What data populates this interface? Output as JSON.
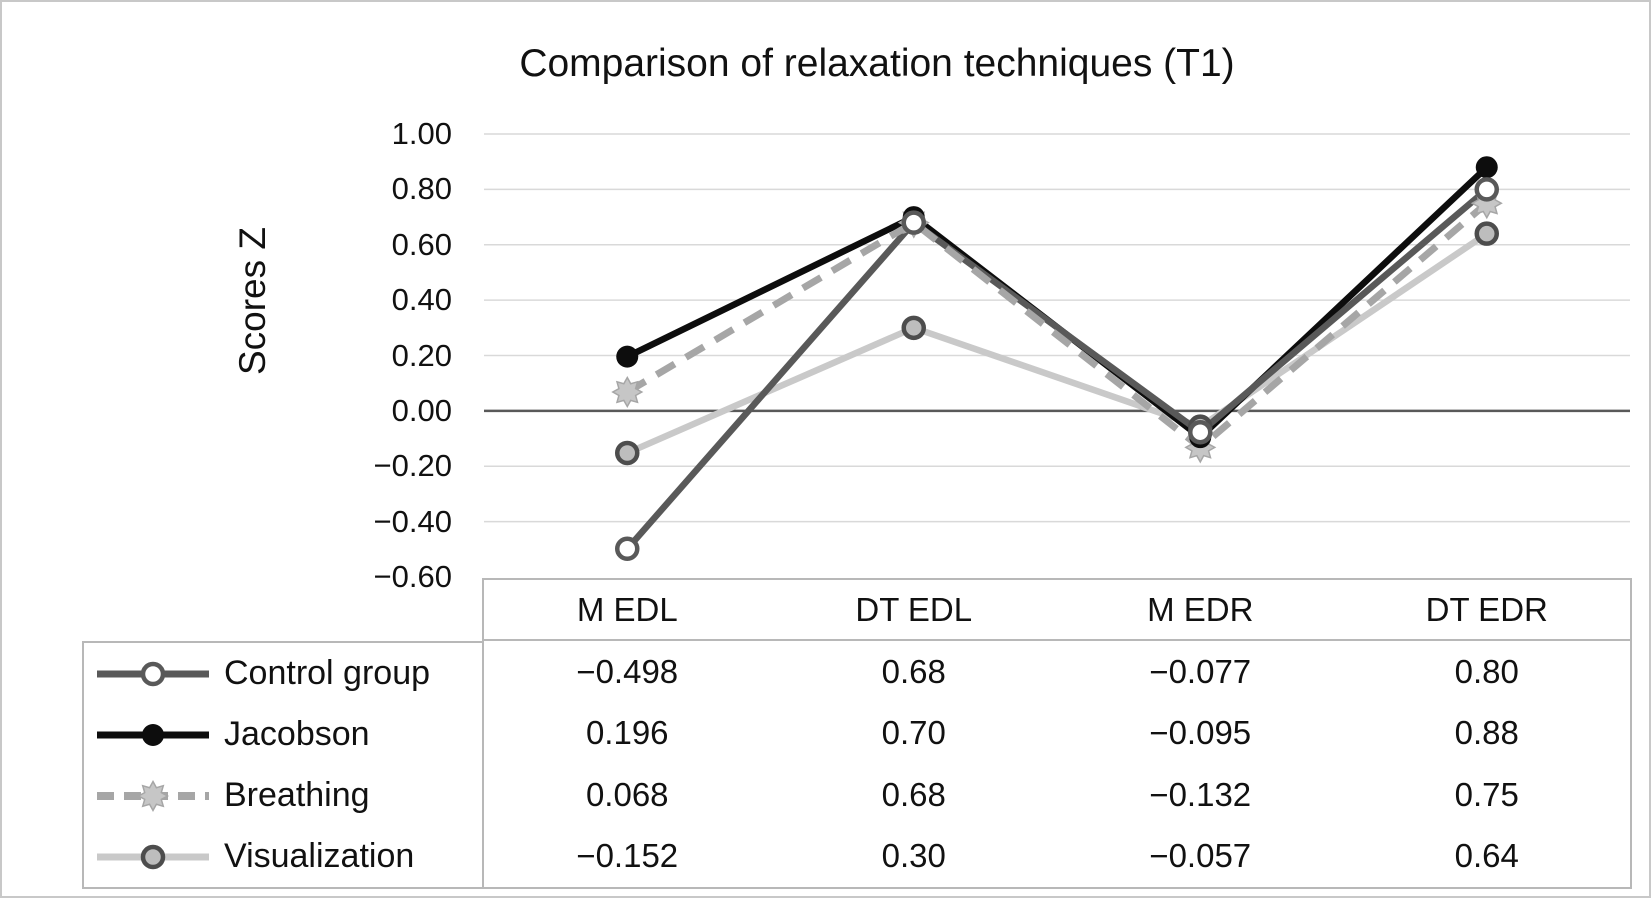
{
  "title": "Comparison of relaxation techniques (T1)",
  "y_axis": {
    "label": "Scores Z",
    "ticks": [
      "1.00",
      "0.80",
      "0.60",
      "0.40",
      "0.20",
      "0.00",
      "−0.20",
      "−0.40",
      "−0.60"
    ],
    "max": 1.0,
    "min": -0.6,
    "step": 0.2
  },
  "chart_data": {
    "type": "line",
    "title": "Comparison of relaxation techniques (T1)",
    "xlabel": "",
    "ylabel": "Scores Z",
    "ylim": [
      -0.6,
      1.0
    ],
    "ytick_step": 0.2,
    "grid": true,
    "zero_line": true,
    "legend_position": "table-left",
    "categories": [
      "M EDL",
      "DT EDL",
      "M EDR",
      "DT EDR"
    ],
    "series": [
      {
        "name": "Control group",
        "values": [
          -0.498,
          0.68,
          -0.077,
          0.8
        ],
        "display": [
          "−0.498",
          "0.68",
          "−0.077",
          "0.80"
        ],
        "line_style": "solid",
        "color": "#595959",
        "marker": "open-circle",
        "marker_fill": "#ffffff"
      },
      {
        "name": "Jacobson",
        "values": [
          0.196,
          0.7,
          -0.095,
          0.88
        ],
        "display": [
          "0.196",
          "0.70",
          "−0.095",
          "0.88"
        ],
        "line_style": "solid",
        "color": "#0d0d0d",
        "marker": "filled-circle",
        "marker_fill": "#0d0d0d"
      },
      {
        "name": "Breathing",
        "values": [
          0.068,
          0.68,
          -0.132,
          0.75
        ],
        "display": [
          "0.068",
          "0.68",
          "−0.132",
          "0.75"
        ],
        "line_style": "dashed",
        "color": "#a6a6a6",
        "marker": "gear",
        "marker_fill": "#c6c6c6"
      },
      {
        "name": "Visualization",
        "values": [
          -0.152,
          0.3,
          -0.057,
          0.64
        ],
        "display": [
          "−0.152",
          "0.30",
          "−0.057",
          "0.64"
        ],
        "line_style": "solid",
        "color": "#c9c9c9",
        "marker": "gray-circle",
        "marker_fill": "#bdbdbd"
      }
    ]
  },
  "colors": {
    "background": "#ffffff",
    "canvas_border": "#c8c8c8",
    "table_border": "#b8b8b8",
    "gridline": "#d9d9d9",
    "zero_line": "#595959",
    "text": "#111111",
    "open_marker_ring": "#595959",
    "gray_marker_ring": "#4d4d4d"
  }
}
